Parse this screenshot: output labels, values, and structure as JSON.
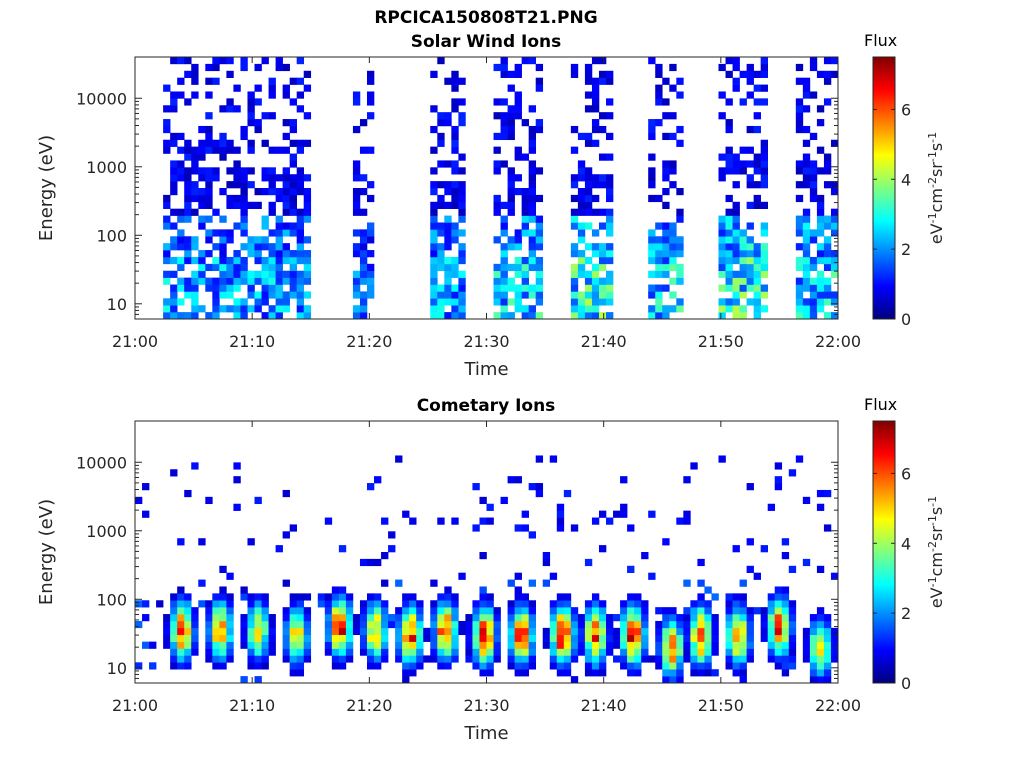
{
  "figure": {
    "title": "RPCICA150808T21.PNG"
  },
  "colors": {
    "colormap": [
      "#00007f",
      "#0000ff",
      "#007fff",
      "#00ffff",
      "#7fff7f",
      "#ffff00",
      "#ff7f00",
      "#ff0000",
      "#7f0000"
    ]
  },
  "chart_data": [
    {
      "type": "heatmap",
      "title": "Solar Wind Ions",
      "xlabel": "Time",
      "ylabel": "Energy (eV)",
      "x_ticks": [
        "21:00",
        "21:10",
        "21:20",
        "21:30",
        "21:40",
        "21:50",
        "22:00"
      ],
      "xlim": [
        "21:00",
        "22:00"
      ],
      "y_scale": "log",
      "y_ticks": [
        "10",
        "100",
        "1000",
        "10000"
      ],
      "ylim": [
        6,
        40000
      ],
      "colorbar": {
        "title": "Flux",
        "label": "eV-1cm-2sr-1s-1",
        "ticks": [
          "0",
          "2",
          "4",
          "6"
        ],
        "range": [
          0,
          7.5
        ]
      },
      "bursts": [
        {
          "start": "21:02.5",
          "end": "21:15.0",
          "flux_peak": 2.5
        },
        {
          "start": "21:18.5",
          "end": "21:20.5",
          "flux_peak": 2.0
        },
        {
          "start": "21:25.0",
          "end": "21:28.0",
          "flux_peak": 2.5
        },
        {
          "start": "21:30.5",
          "end": "21:34.5",
          "flux_peak": 3.0
        },
        {
          "start": "21:37.5",
          "end": "21:41.0",
          "flux_peak": 3.5
        },
        {
          "start": "21:44.0",
          "end": "21:47.0",
          "flux_peak": 3.0
        },
        {
          "start": "21:50.0",
          "end": "21:54.0",
          "flux_peak": 3.5
        },
        {
          "start": "21:56.5",
          "end": "22:00.0",
          "flux_peak": 3.0
        }
      ]
    },
    {
      "type": "heatmap",
      "title": "Cometary Ions",
      "xlabel": "Time",
      "ylabel": "Energy (eV)",
      "x_ticks": [
        "21:00",
        "21:10",
        "21:20",
        "21:30",
        "21:40",
        "21:50",
        "22:00"
      ],
      "xlim": [
        "21:00",
        "22:00"
      ],
      "y_scale": "log",
      "y_ticks": [
        "10",
        "100",
        "1000",
        "10000"
      ],
      "ylim": [
        6,
        40000
      ],
      "colorbar": {
        "title": "Flux",
        "label": "eV-1cm-2sr-1s-1",
        "ticks": [
          "0",
          "2",
          "4",
          "6"
        ],
        "range": [
          0,
          7.5
        ]
      },
      "bursts": [
        {
          "center": "21:04.0",
          "flux_peak": 6.5,
          "energy_peak": 35
        },
        {
          "center": "21:07.3",
          "flux_peak": 6.0,
          "energy_peak": 35
        },
        {
          "center": "21:10.5",
          "flux_peak": 5.0,
          "energy_peak": 35
        },
        {
          "center": "21:13.8",
          "flux_peak": 5.0,
          "energy_peak": 30
        },
        {
          "center": "21:17.5",
          "flux_peak": 7.0,
          "energy_peak": 40
        },
        {
          "center": "21:20.5",
          "flux_peak": 5.5,
          "energy_peak": 35
        },
        {
          "center": "21:23.5",
          "flux_peak": 6.5,
          "energy_peak": 30
        },
        {
          "center": "21:26.5",
          "flux_peak": 6.5,
          "energy_peak": 35
        },
        {
          "center": "21:29.8",
          "flux_peak": 7.0,
          "energy_peak": 30
        },
        {
          "center": "21:33.0",
          "flux_peak": 6.5,
          "energy_peak": 30
        },
        {
          "center": "21:36.5",
          "flux_peak": 7.0,
          "energy_peak": 30
        },
        {
          "center": "21:39.3",
          "flux_peak": 6.5,
          "energy_peak": 30
        },
        {
          "center": "21:42.5",
          "flux_peak": 7.0,
          "energy_peak": 30
        },
        {
          "center": "21:45.8",
          "flux_peak": 6.0,
          "energy_peak": 20
        },
        {
          "center": "21:48.3",
          "flux_peak": 6.5,
          "energy_peak": 30
        },
        {
          "center": "21:51.5",
          "flux_peak": 6.0,
          "energy_peak": 30
        },
        {
          "center": "21:55.0",
          "flux_peak": 6.5,
          "energy_peak": 40
        },
        {
          "center": "21:58.5",
          "flux_peak": 5.0,
          "energy_peak": 20
        }
      ]
    }
  ]
}
